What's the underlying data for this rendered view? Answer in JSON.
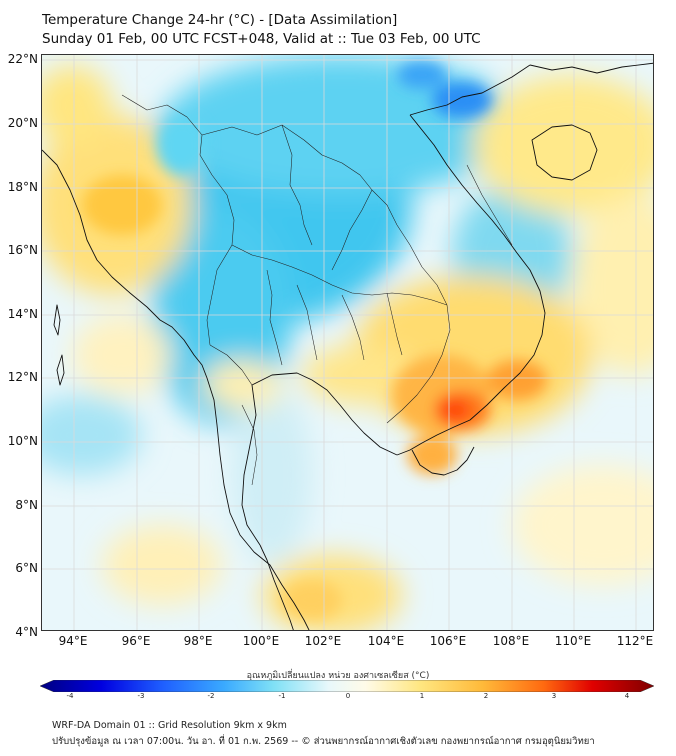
{
  "title": {
    "line1": "Temperature Change 24-hr (°C) - [Data Assimilation]",
    "line2": "Sunday 01 Feb, 00 UTC FCST+048, Valid at :: Tue 03 Feb, 00 UTC"
  },
  "map": {
    "lat_labels": [
      "22°N",
      "20°N",
      "18°N",
      "16°N",
      "14°N",
      "12°N",
      "10°N",
      "8°N",
      "6°N",
      "4°N"
    ],
    "lon_labels": [
      "94°E",
      "96°E",
      "98°E",
      "100°E",
      "102°E",
      "104°E",
      "106°E",
      "108°E",
      "110°E",
      "112°E"
    ]
  },
  "colorbar": {
    "title": "อุณหภูมิเปลี่ยนแปลง หน่วย องศาเซลเซียส (°C)",
    "tick_labels": [
      "-4",
      "-3",
      "-2",
      "-1",
      "0",
      "1",
      "2",
      "3",
      "4"
    ],
    "min": -4,
    "max": 4
  },
  "footer": {
    "line1": "WRF-DA Domain 01 :: Grid Resolution 9km x 9km",
    "line2": "ปรับปรุงข้อมูล ณ เวลา 07:00น. วัน อา. ที่ 01 ก.พ. 2569 -- © ส่วนพยากรณ์อากาศเชิงตัวเลข กองพยากรณ์อากาศ กรมอุตุนิยมวิทยา"
  },
  "colors": {
    "cold_extreme": "#000080",
    "cold": "#1f8fff",
    "cool": "#5fd4f2",
    "neutral": "#ffffff",
    "warm": "#ffe680",
    "hot": "#ff8a1a",
    "hot_extreme": "#7f0000",
    "coastline": "#111111",
    "grid": "#d8d8d8"
  }
}
